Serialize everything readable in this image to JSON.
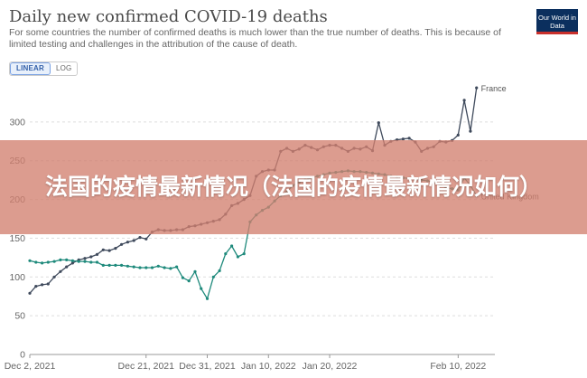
{
  "header": {
    "title": "Daily new confirmed COVID-19 deaths",
    "subtitle": "For some countries the number of confirmed deaths is much lower than the true number of deaths. This is because of limited testing and challenges in the attribution of the cause of death.",
    "logo_text": "Our World in Data"
  },
  "toggle": {
    "linear_label": "LINEAR",
    "log_label": "LOG",
    "active": "LINEAR"
  },
  "banner": {
    "text": "法国的疫情最新情况（法国的疫情最新情况如何）"
  },
  "chart_data": {
    "type": "line",
    "xlabel": "",
    "ylabel": "",
    "ylim": [
      0,
      350
    ],
    "yticks": [
      0,
      50,
      100,
      150,
      200,
      250,
      300
    ],
    "ytick_labels": [
      "0",
      "50",
      "100",
      "150",
      "200",
      "250",
      "300"
    ],
    "xlim": [
      "2021-12-02",
      "2022-02-16"
    ],
    "xticks": [
      "2021-12-02",
      "2021-12-21",
      "2021-12-31",
      "2022-01-10",
      "2022-01-20",
      "2022-02-10"
    ],
    "xtick_labels": [
      "Dec 2, 2021",
      "Dec 21, 2021",
      "Dec 31, 2021",
      "Jan 10, 2022",
      "Jan 20, 2022",
      "Feb 10, 2022"
    ],
    "grid": "horizontal-dashed",
    "colors": {
      "France": "#3f4a5c",
      "United Kingdom": "#1f8a7c",
      "grid": "#dddddd",
      "axis_text": "#666666"
    },
    "series": [
      {
        "name": "France",
        "color": "#3f4a5c",
        "values": [
          [
            "2021-12-02",
            79
          ],
          [
            "2021-12-03",
            88
          ],
          [
            "2021-12-04",
            90
          ],
          [
            "2021-12-05",
            91
          ],
          [
            "2021-12-06",
            100
          ],
          [
            "2021-12-07",
            107
          ],
          [
            "2021-12-08",
            113
          ],
          [
            "2021-12-09",
            118
          ],
          [
            "2021-12-10",
            122
          ],
          [
            "2021-12-11",
            124
          ],
          [
            "2021-12-12",
            126
          ],
          [
            "2021-12-13",
            129
          ],
          [
            "2021-12-14",
            135
          ],
          [
            "2021-12-15",
            134
          ],
          [
            "2021-12-16",
            137
          ],
          [
            "2021-12-17",
            142
          ],
          [
            "2021-12-18",
            145
          ],
          [
            "2021-12-19",
            147
          ],
          [
            "2021-12-20",
            151
          ],
          [
            "2021-12-21",
            149
          ],
          [
            "2021-12-22",
            158
          ],
          [
            "2021-12-23",
            161
          ],
          [
            "2021-12-24",
            160
          ],
          [
            "2021-12-25",
            160
          ],
          [
            "2021-12-26",
            161
          ],
          [
            "2021-12-27",
            161
          ],
          [
            "2021-12-28",
            165
          ],
          [
            "2021-12-29",
            166
          ],
          [
            "2021-12-30",
            168
          ],
          [
            "2021-12-31",
            170
          ],
          [
            "2022-01-01",
            172
          ],
          [
            "2022-01-02",
            174
          ],
          [
            "2022-01-03",
            181
          ],
          [
            "2022-01-04",
            192
          ],
          [
            "2022-01-05",
            195
          ],
          [
            "2022-01-06",
            200
          ],
          [
            "2022-01-07",
            205
          ],
          [
            "2022-01-08",
            230
          ],
          [
            "2022-01-09",
            236
          ],
          [
            "2022-01-10",
            238
          ],
          [
            "2022-01-11",
            238
          ],
          [
            "2022-01-12",
            262
          ],
          [
            "2022-01-13",
            266
          ],
          [
            "2022-01-14",
            262
          ],
          [
            "2022-01-15",
            265
          ],
          [
            "2022-01-16",
            270
          ],
          [
            "2022-01-17",
            267
          ],
          [
            "2022-01-18",
            264
          ],
          [
            "2022-01-19",
            268
          ],
          [
            "2022-01-20",
            270
          ],
          [
            "2022-01-21",
            270
          ],
          [
            "2022-01-22",
            266
          ],
          [
            "2022-01-23",
            262
          ],
          [
            "2022-01-24",
            266
          ],
          [
            "2022-01-25",
            265
          ],
          [
            "2022-01-26",
            268
          ],
          [
            "2022-01-27",
            263
          ],
          [
            "2022-01-28",
            299
          ],
          [
            "2022-01-29",
            270
          ],
          [
            "2022-01-30",
            275
          ],
          [
            "2022-01-31",
            277
          ],
          [
            "2022-02-01",
            278
          ],
          [
            "2022-02-02",
            279
          ],
          [
            "2022-02-03",
            274
          ],
          [
            "2022-02-04",
            262
          ],
          [
            "2022-02-05",
            266
          ],
          [
            "2022-02-06",
            268
          ],
          [
            "2022-02-07",
            275
          ],
          [
            "2022-02-08",
            274
          ],
          [
            "2022-02-09",
            276
          ],
          [
            "2022-02-10",
            283
          ],
          [
            "2022-02-11",
            328
          ],
          [
            "2022-02-12",
            288
          ],
          [
            "2022-02-13",
            344
          ]
        ]
      },
      {
        "name": "United Kingdom",
        "color": "#1f8a7c",
        "values": [
          [
            "2021-12-02",
            121
          ],
          [
            "2021-12-03",
            119
          ],
          [
            "2021-12-04",
            118
          ],
          [
            "2021-12-05",
            119
          ],
          [
            "2021-12-06",
            120
          ],
          [
            "2021-12-07",
            122
          ],
          [
            "2021-12-08",
            122
          ],
          [
            "2021-12-09",
            121
          ],
          [
            "2021-12-10",
            120
          ],
          [
            "2021-12-11",
            120
          ],
          [
            "2021-12-12",
            119
          ],
          [
            "2021-12-13",
            119
          ],
          [
            "2021-12-14",
            115
          ],
          [
            "2021-12-15",
            115
          ],
          [
            "2021-12-16",
            115
          ],
          [
            "2021-12-17",
            115
          ],
          [
            "2021-12-18",
            114
          ],
          [
            "2021-12-19",
            113
          ],
          [
            "2021-12-20",
            112
          ],
          [
            "2021-12-21",
            112
          ],
          [
            "2021-12-22",
            112
          ],
          [
            "2021-12-23",
            114
          ],
          [
            "2021-12-24",
            112
          ],
          [
            "2021-12-25",
            111
          ],
          [
            "2021-12-26",
            113
          ],
          [
            "2021-12-27",
            99
          ],
          [
            "2021-12-28",
            95
          ],
          [
            "2021-12-29",
            107
          ],
          [
            "2021-12-30",
            85
          ],
          [
            "2021-12-31",
            72
          ],
          [
            "2022-01-01",
            100
          ],
          [
            "2022-01-02",
            108
          ],
          [
            "2022-01-03",
            130
          ],
          [
            "2022-01-04",
            140
          ],
          [
            "2022-01-05",
            126
          ],
          [
            "2022-01-06",
            130
          ],
          [
            "2022-01-07",
            171
          ],
          [
            "2022-01-08",
            180
          ],
          [
            "2022-01-09",
            186
          ],
          [
            "2022-01-10",
            190
          ],
          [
            "2022-01-11",
            198
          ],
          [
            "2022-01-12",
            205
          ],
          [
            "2022-01-13",
            210
          ],
          [
            "2022-01-14",
            218
          ],
          [
            "2022-01-15",
            222
          ],
          [
            "2022-01-16",
            225
          ],
          [
            "2022-01-17",
            228
          ],
          [
            "2022-01-18",
            230
          ],
          [
            "2022-01-19",
            232
          ],
          [
            "2022-01-20",
            234
          ],
          [
            "2022-01-21",
            235
          ],
          [
            "2022-01-22",
            236
          ],
          [
            "2022-01-23",
            237
          ],
          [
            "2022-01-24",
            236
          ],
          [
            "2022-01-25",
            236
          ],
          [
            "2022-01-26",
            235
          ],
          [
            "2022-01-27",
            234
          ],
          [
            "2022-01-28",
            233
          ],
          [
            "2022-01-29",
            232
          ],
          [
            "2022-01-30",
            230
          ],
          [
            "2022-01-31",
            229
          ],
          [
            "2022-02-01",
            228
          ],
          [
            "2022-02-02",
            227
          ],
          [
            "2022-02-03",
            226
          ],
          [
            "2022-02-04",
            225
          ],
          [
            "2022-02-05",
            224
          ],
          [
            "2022-02-06",
            222
          ],
          [
            "2022-02-07",
            220
          ],
          [
            "2022-02-08",
            215
          ],
          [
            "2022-02-09",
            214
          ],
          [
            "2022-02-10",
            212
          ],
          [
            "2022-02-11",
            228
          ],
          [
            "2022-02-12",
            218
          ],
          [
            "2022-02-13",
            205
          ]
        ]
      }
    ]
  }
}
